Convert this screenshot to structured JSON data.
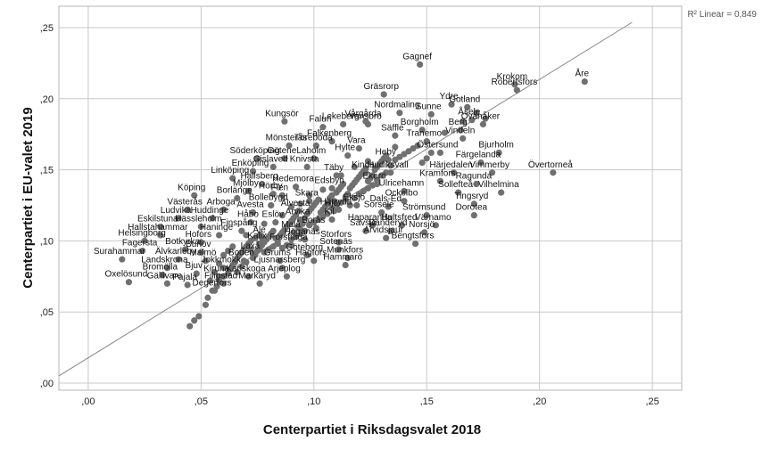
{
  "chart_data": {
    "type": "scatter",
    "xlabel": "Centerpartiet i Riksdagsvalet 2018",
    "ylabel": "Centerpartiet i EU-valet 2019",
    "xlim": [
      -0.013,
      0.263
    ],
    "ylim": [
      -0.005,
      0.265
    ],
    "x_ticks": [
      ",00",
      ",05",
      ",10",
      ",15",
      ",20",
      ",25"
    ],
    "y_ticks": [
      ",00",
      ",05",
      ",10",
      ",15",
      ",20",
      ",25"
    ],
    "x_tick_values": [
      0,
      0.05,
      0.1,
      0.15,
      0.2,
      0.25
    ],
    "y_tick_values": [
      0,
      0.05,
      0.1,
      0.15,
      0.2,
      0.25
    ],
    "grid": true,
    "fit_line": {
      "slope": 0.9786,
      "intercept": 0.0178,
      "x_range": [
        -0.013,
        0.241
      ]
    },
    "r2_label": "R² Linear = 0,849",
    "point_color": "#707070",
    "line_color": "#888888",
    "labeled_points": [
      {
        "name": "Gagnef",
        "x": 0.147,
        "y": 0.224
      },
      {
        "name": "Krokom",
        "x": 0.189,
        "y": 0.21
      },
      {
        "name": "Åre",
        "x": 0.22,
        "y": 0.212
      },
      {
        "name": "Gräsrorp",
        "x": 0.131,
        "y": 0.203
      },
      {
        "name": "Robertsfors",
        "x": 0.19,
        "y": 0.206
      },
      {
        "name": "Ydre",
        "x": 0.161,
        "y": 0.196
      },
      {
        "name": "Gotland",
        "x": 0.168,
        "y": 0.194
      },
      {
        "name": "Nordmaling",
        "x": 0.138,
        "y": 0.19
      },
      {
        "name": "Sunne",
        "x": 0.152,
        "y": 0.189
      },
      {
        "name": "Kungsör",
        "x": 0.087,
        "y": 0.184
      },
      {
        "name": "Vårgårda",
        "x": 0.123,
        "y": 0.184
      },
      {
        "name": "Åsele",
        "x": 0.17,
        "y": 0.185
      },
      {
        "name": "Vansbro",
        "x": 0.124,
        "y": 0.182
      },
      {
        "name": "Ovanåker",
        "x": 0.175,
        "y": 0.182
      },
      {
        "name": "Falun",
        "x": 0.104,
        "y": 0.18
      },
      {
        "name": "Lekeberg",
        "x": 0.113,
        "y": 0.182
      },
      {
        "name": "Borgholm",
        "x": 0.148,
        "y": 0.178
      },
      {
        "name": "Berg",
        "x": 0.165,
        "y": 0.178
      },
      {
        "name": "Vindeln",
        "x": 0.166,
        "y": 0.172
      },
      {
        "name": "Säffle",
        "x": 0.136,
        "y": 0.174
      },
      {
        "name": "Tranemo",
        "x": 0.15,
        "y": 0.17
      },
      {
        "name": "Falkenberg",
        "x": 0.108,
        "y": 0.17
      },
      {
        "name": "Mönsterås",
        "x": 0.089,
        "y": 0.167
      },
      {
        "name": "Töreboda",
        "x": 0.101,
        "y": 0.167
      },
      {
        "name": "Vara",
        "x": 0.12,
        "y": 0.165
      },
      {
        "name": "Östersund",
        "x": 0.156,
        "y": 0.162
      },
      {
        "name": "Bjurholm",
        "x": 0.182,
        "y": 0.162
      },
      {
        "name": "Hylte",
        "x": 0.115,
        "y": 0.16
      },
      {
        "name": "Söderköping",
        "x": 0.075,
        "y": 0.158
      },
      {
        "name": "Götene",
        "x": 0.087,
        "y": 0.158
      },
      {
        "name": "Laholm",
        "x": 0.1,
        "y": 0.158
      },
      {
        "name": "Heby",
        "x": 0.133,
        "y": 0.157
      },
      {
        "name": "Färgelanda",
        "x": 0.174,
        "y": 0.155
      },
      {
        "name": "Gislaved",
        "x": 0.082,
        "y": 0.152
      },
      {
        "name": "Knivsta",
        "x": 0.097,
        "y": 0.152
      },
      {
        "name": "Hudiksvall",
        "x": 0.134,
        "y": 0.148
      },
      {
        "name": "Härjedalen",
        "x": 0.162,
        "y": 0.148
      },
      {
        "name": "Vimmerby",
        "x": 0.179,
        "y": 0.148
      },
      {
        "name": "Övertorneå",
        "x": 0.206,
        "y": 0.148
      },
      {
        "name": "Enköping",
        "x": 0.073,
        "y": 0.149
      },
      {
        "name": "Kinda",
        "x": 0.123,
        "y": 0.148
      },
      {
        "name": "Täby",
        "x": 0.11,
        "y": 0.146
      },
      {
        "name": "Linköping",
        "x": 0.064,
        "y": 0.144
      },
      {
        "name": "Hallsberg",
        "x": 0.077,
        "y": 0.14
      },
      {
        "name": "Kramfors",
        "x": 0.156,
        "y": 0.142
      },
      {
        "name": "Ragunda",
        "x": 0.172,
        "y": 0.14
      },
      {
        "name": "Hedemora",
        "x": 0.092,
        "y": 0.138
      },
      {
        "name": "Ekerö",
        "x": 0.128,
        "y": 0.14
      },
      {
        "name": "Edsbyn",
        "x": 0.108,
        "y": 0.137
      },
      {
        "name": "Mjölby",
        "x": 0.071,
        "y": 0.135
      },
      {
        "name": "Sollefteå",
        "x": 0.164,
        "y": 0.134
      },
      {
        "name": "Vilhelmina",
        "x": 0.183,
        "y": 0.134
      },
      {
        "name": "Ulricehamn",
        "x": 0.14,
        "y": 0.135
      },
      {
        "name": "Köping",
        "x": 0.047,
        "y": 0.132
      },
      {
        "name": "Hörby",
        "x": 0.082,
        "y": 0.133
      },
      {
        "name": "Flen",
        "x": 0.086,
        "y": 0.132
      },
      {
        "name": "Borlänge",
        "x": 0.066,
        "y": 0.13
      },
      {
        "name": "Skara",
        "x": 0.098,
        "y": 0.128
      },
      {
        "name": "Tingsryd",
        "x": 0.171,
        "y": 0.126
      },
      {
        "name": "Ockelbo",
        "x": 0.14,
        "y": 0.128
      },
      {
        "name": "Bollebygd",
        "x": 0.081,
        "y": 0.125
      },
      {
        "name": "Eksjö",
        "x": 0.119,
        "y": 0.125
      },
      {
        "name": "Dals-Ed",
        "x": 0.133,
        "y": 0.124
      },
      {
        "name": "Västerås",
        "x": 0.044,
        "y": 0.122
      },
      {
        "name": "Arboga",
        "x": 0.06,
        "y": 0.122
      },
      {
        "name": "Älvesta",
        "x": 0.093,
        "y": 0.121
      },
      {
        "name": "Hjo",
        "x": 0.109,
        "y": 0.121
      },
      {
        "name": "Sorsele",
        "x": 0.13,
        "y": 0.12
      },
      {
        "name": "Avesta",
        "x": 0.073,
        "y": 0.12
      },
      {
        "name": "Härryda",
        "x": 0.111,
        "y": 0.122
      },
      {
        "name": "Strömsund",
        "x": 0.15,
        "y": 0.118
      },
      {
        "name": "Dorotea",
        "x": 0.171,
        "y": 0.118
      },
      {
        "name": "Ludvika",
        "x": 0.04,
        "y": 0.116
      },
      {
        "name": "Huddinge",
        "x": 0.055,
        "y": 0.116
      },
      {
        "name": "Arvika",
        "x": 0.094,
        "y": 0.115
      },
      {
        "name": "Kil",
        "x": 0.108,
        "y": 0.115
      },
      {
        "name": "Håbo",
        "x": 0.072,
        "y": 0.113
      },
      {
        "name": "Eslöv",
        "x": 0.083,
        "y": 0.113
      },
      {
        "name": "Haparanda",
        "x": 0.126,
        "y": 0.111
      },
      {
        "name": "Hultsfred",
        "x": 0.139,
        "y": 0.111
      },
      {
        "name": "Värnamo",
        "x": 0.154,
        "y": 0.111
      },
      {
        "name": "Eskilstuna",
        "x": 0.032,
        "y": 0.11
      },
      {
        "name": "Hässleholm",
        "x": 0.05,
        "y": 0.11
      },
      {
        "name": "Borås",
        "x": 0.101,
        "y": 0.109
      },
      {
        "name": "Finspång",
        "x": 0.068,
        "y": 0.107
      },
      {
        "name": "Sävsjö",
        "x": 0.123,
        "y": 0.107
      },
      {
        "name": "Danderyd",
        "x": 0.134,
        "y": 0.107
      },
      {
        "name": "Norsjö",
        "x": 0.149,
        "y": 0.106
      },
      {
        "name": "Malå",
        "x": 0.091,
        "y": 0.106
      },
      {
        "name": "Hallstahammar",
        "x": 0.032,
        "y": 0.104
      },
      {
        "name": "Haninge",
        "x": 0.058,
        "y": 0.104
      },
      {
        "name": "Ale",
        "x": 0.077,
        "y": 0.102
      },
      {
        "name": "Höganäs",
        "x": 0.096,
        "y": 0.101
      },
      {
        "name": "Arvidsjaur",
        "x": 0.132,
        "y": 0.102
      },
      {
        "name": "Helsingborg",
        "x": 0.025,
        "y": 0.1
      },
      {
        "name": "Hofors",
        "x": 0.05,
        "y": 0.099
      },
      {
        "name": "Kalix",
        "x": 0.076,
        "y": 0.098
      },
      {
        "name": "Storfors",
        "x": 0.111,
        "y": 0.099
      },
      {
        "name": "Forshaga",
        "x": 0.09,
        "y": 0.097
      },
      {
        "name": "Bengtsfors",
        "x": 0.145,
        "y": 0.098
      },
      {
        "name": "Fagersta",
        "x": 0.024,
        "y": 0.093
      },
      {
        "name": "Botkyrka",
        "x": 0.043,
        "y": 0.094
      },
      {
        "name": "Sotenäs",
        "x": 0.111,
        "y": 0.094
      },
      {
        "name": "Burlöv",
        "x": 0.05,
        "y": 0.092
      },
      {
        "name": "Laxå",
        "x": 0.073,
        "y": 0.091
      },
      {
        "name": "Göteborg",
        "x": 0.097,
        "y": 0.09
      },
      {
        "name": "Munkfors",
        "x": 0.115,
        "y": 0.088
      },
      {
        "name": "Surahammar",
        "x": 0.015,
        "y": 0.087
      },
      {
        "name": "Älvkarleby",
        "x": 0.04,
        "y": 0.087
      },
      {
        "name": "Malmö",
        "x": 0.052,
        "y": 0.086
      },
      {
        "name": "Boden",
        "x": 0.069,
        "y": 0.086
      },
      {
        "name": "Grums",
        "x": 0.085,
        "y": 0.086
      },
      {
        "name": "Hagfors",
        "x": 0.1,
        "y": 0.086
      },
      {
        "name": "Hammarö",
        "x": 0.114,
        "y": 0.083
      },
      {
        "name": "Landskrona",
        "x": 0.035,
        "y": 0.081
      },
      {
        "name": "Jokkmokk",
        "x": 0.06,
        "y": 0.081
      },
      {
        "name": "Ljusnarsberg",
        "x": 0.086,
        "y": 0.081
      },
      {
        "name": "Bromölla",
        "x": 0.033,
        "y": 0.076
      },
      {
        "name": "Bjuv",
        "x": 0.048,
        "y": 0.077
      },
      {
        "name": "Kiruna",
        "x": 0.058,
        "y": 0.075
      },
      {
        "name": "Karlskoga",
        "x": 0.071,
        "y": 0.075
      },
      {
        "name": "Arjeplog",
        "x": 0.088,
        "y": 0.075
      },
      {
        "name": "Oxelösund",
        "x": 0.018,
        "y": 0.071
      },
      {
        "name": "Gällivare",
        "x": 0.035,
        "y": 0.07
      },
      {
        "name": "Pajala",
        "x": 0.044,
        "y": 0.069
      },
      {
        "name": "Filipstad",
        "x": 0.06,
        "y": 0.07
      },
      {
        "name": "Markaryd",
        "x": 0.076,
        "y": 0.07
      },
      {
        "name": "Degerfors",
        "x": 0.056,
        "y": 0.065
      }
    ],
    "unlabeled_points": [
      [
        0.045,
        0.04
      ],
      [
        0.047,
        0.044
      ],
      [
        0.049,
        0.047
      ],
      [
        0.052,
        0.055
      ],
      [
        0.053,
        0.06
      ],
      [
        0.055,
        0.065
      ],
      [
        0.057,
        0.068
      ],
      [
        0.058,
        0.072
      ],
      [
        0.06,
        0.075
      ],
      [
        0.062,
        0.077
      ],
      [
        0.063,
        0.08
      ],
      [
        0.064,
        0.083
      ],
      [
        0.065,
        0.085
      ],
      [
        0.066,
        0.088
      ],
      [
        0.067,
        0.09
      ],
      [
        0.068,
        0.092
      ],
      [
        0.069,
        0.094
      ],
      [
        0.07,
        0.096
      ],
      [
        0.071,
        0.098
      ],
      [
        0.072,
        0.094
      ],
      [
        0.073,
        0.088
      ],
      [
        0.074,
        0.09
      ],
      [
        0.075,
        0.093
      ],
      [
        0.076,
        0.095
      ],
      [
        0.077,
        0.097
      ],
      [
        0.078,
        0.099
      ],
      [
        0.079,
        0.101
      ],
      [
        0.08,
        0.103
      ],
      [
        0.081,
        0.105
      ],
      [
        0.082,
        0.107
      ],
      [
        0.083,
        0.102
      ],
      [
        0.084,
        0.1
      ],
      [
        0.085,
        0.104
      ],
      [
        0.086,
        0.106
      ],
      [
        0.087,
        0.108
      ],
      [
        0.088,
        0.11
      ],
      [
        0.089,
        0.112
      ],
      [
        0.09,
        0.114
      ],
      [
        0.091,
        0.116
      ],
      [
        0.092,
        0.118
      ],
      [
        0.093,
        0.11
      ],
      [
        0.094,
        0.108
      ],
      [
        0.095,
        0.112
      ],
      [
        0.096,
        0.116
      ],
      [
        0.097,
        0.119
      ],
      [
        0.098,
        0.121
      ],
      [
        0.099,
        0.123
      ],
      [
        0.1,
        0.125
      ],
      [
        0.101,
        0.127
      ],
      [
        0.102,
        0.129
      ],
      [
        0.103,
        0.12
      ],
      [
        0.104,
        0.122
      ],
      [
        0.105,
        0.124
      ],
      [
        0.106,
        0.126
      ],
      [
        0.107,
        0.13
      ],
      [
        0.108,
        0.132
      ],
      [
        0.109,
        0.128
      ],
      [
        0.11,
        0.134
      ],
      [
        0.111,
        0.136
      ],
      [
        0.112,
        0.138
      ],
      [
        0.113,
        0.14
      ],
      [
        0.114,
        0.131
      ],
      [
        0.115,
        0.133
      ],
      [
        0.116,
        0.137
      ],
      [
        0.117,
        0.139
      ],
      [
        0.118,
        0.141
      ],
      [
        0.119,
        0.143
      ],
      [
        0.12,
        0.145
      ],
      [
        0.121,
        0.147
      ],
      [
        0.122,
        0.149
      ],
      [
        0.123,
        0.151
      ],
      [
        0.124,
        0.142
      ],
      [
        0.125,
        0.144
      ],
      [
        0.126,
        0.146
      ],
      [
        0.127,
        0.15
      ],
      [
        0.128,
        0.152
      ],
      [
        0.129,
        0.154
      ],
      [
        0.13,
        0.156
      ],
      [
        0.131,
        0.158
      ],
      [
        0.132,
        0.16
      ],
      [
        0.134,
        0.153
      ],
      [
        0.136,
        0.157
      ],
      [
        0.138,
        0.159
      ],
      [
        0.14,
        0.161
      ],
      [
        0.142,
        0.163
      ],
      [
        0.144,
        0.165
      ],
      [
        0.146,
        0.167
      ],
      [
        0.148,
        0.155
      ],
      [
        0.15,
        0.158
      ],
      [
        0.152,
        0.162
      ],
      [
        0.066,
        0.078
      ],
      [
        0.068,
        0.082
      ],
      [
        0.07,
        0.085
      ],
      [
        0.072,
        0.1
      ],
      [
        0.074,
        0.102
      ],
      [
        0.076,
        0.104
      ],
      [
        0.078,
        0.092
      ],
      [
        0.08,
        0.094
      ],
      [
        0.082,
        0.096
      ],
      [
        0.084,
        0.098
      ],
      [
        0.086,
        0.095
      ],
      [
        0.088,
        0.097
      ],
      [
        0.09,
        0.101
      ],
      [
        0.092,
        0.103
      ],
      [
        0.094,
        0.105
      ],
      [
        0.096,
        0.107
      ],
      [
        0.098,
        0.111
      ],
      [
        0.1,
        0.113
      ],
      [
        0.102,
        0.115
      ],
      [
        0.104,
        0.117
      ],
      [
        0.106,
        0.119
      ],
      [
        0.108,
        0.123
      ],
      [
        0.11,
        0.125
      ],
      [
        0.112,
        0.127
      ],
      [
        0.114,
        0.129
      ],
      [
        0.116,
        0.125
      ],
      [
        0.118,
        0.13
      ],
      [
        0.12,
        0.133
      ],
      [
        0.122,
        0.135
      ],
      [
        0.124,
        0.137
      ],
      [
        0.126,
        0.139
      ],
      [
        0.128,
        0.143
      ],
      [
        0.13,
        0.146
      ],
      [
        0.132,
        0.148
      ],
      [
        0.06,
        0.09
      ],
      [
        0.062,
        0.093
      ],
      [
        0.064,
        0.096
      ],
      [
        0.07,
        0.104
      ],
      [
        0.078,
        0.112
      ],
      [
        0.086,
        0.118
      ],
      [
        0.09,
        0.124
      ],
      [
        0.094,
        0.126
      ],
      [
        0.098,
        0.132
      ],
      [
        0.104,
        0.136
      ],
      [
        0.112,
        0.146
      ],
      [
        0.118,
        0.152
      ],
      [
        0.124,
        0.156
      ],
      [
        0.136,
        0.166
      ],
      [
        0.158,
        0.176
      ],
      [
        0.172,
        0.19
      ],
      [
        0.176,
        0.186
      ],
      [
        0.166,
        0.184
      ],
      [
        0.054,
        0.072
      ],
      [
        0.056,
        0.078
      ],
      [
        0.058,
        0.084
      ]
    ]
  }
}
